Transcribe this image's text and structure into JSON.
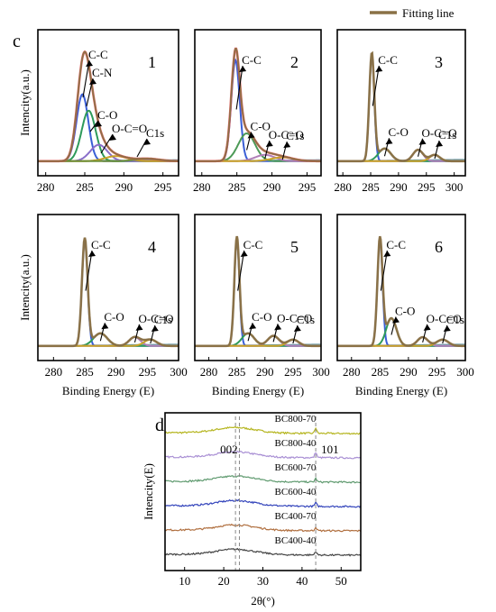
{
  "legend": {
    "label": "Fitting line",
    "color": "#8a7146"
  },
  "panel_c_letter": "c",
  "panel_d_letter": "d",
  "chart_data": [
    {
      "type": "line",
      "id": "xps-1",
      "panel_label": "1",
      "xlim": [
        279,
        297
      ],
      "xticks": [
        280,
        285,
        290,
        295
      ],
      "ylim": [
        0,
        1
      ],
      "ylabel": "Intencity(a.u.)",
      "xlabel": "",
      "peaks": [
        {
          "name": "C-C",
          "center": 284.7,
          "height": 0.53,
          "width": 0.75,
          "color": "#3a5fd6"
        },
        {
          "name": "C-N",
          "center": 285.5,
          "height": 0.4,
          "width": 0.9,
          "color": "#2e9a5a"
        },
        {
          "name": "C-O",
          "center": 286.8,
          "height": 0.13,
          "width": 1.1,
          "color": "#8a6fc9"
        },
        {
          "name": "O-C=O",
          "center": 289.0,
          "height": 0.04,
          "width": 1.4,
          "color": "#c9a227"
        },
        {
          "name": "",
          "center": 293.0,
          "height": 0.02,
          "width": 1.5,
          "color": "#6f8f3a"
        }
      ],
      "envelope_color": "#d9544f",
      "background": 0.03,
      "annotations": [
        "C-C",
        "C-N",
        "C-O",
        "O-C=O",
        "C1s"
      ]
    },
    {
      "type": "line",
      "id": "xps-2",
      "panel_label": "2",
      "xlim": [
        279,
        297
      ],
      "xticks": [
        280,
        285,
        290,
        295
      ],
      "ylim": [
        0,
        1
      ],
      "peaks": [
        {
          "name": "C-C",
          "center": 284.8,
          "height": 0.8,
          "width": 0.6,
          "color": "#3a5fd6"
        },
        {
          "name": "C-O",
          "center": 286.4,
          "height": 0.22,
          "width": 1.2,
          "color": "#4c9a57"
        },
        {
          "name": "O-C=O",
          "center": 289.0,
          "height": 0.05,
          "width": 1.4,
          "color": "#b07fb8"
        },
        {
          "name": "",
          "center": 291.5,
          "height": 0.03,
          "width": 1.6,
          "color": "#c9a227"
        }
      ],
      "envelope_color": "#d9544f",
      "background": 0.03,
      "annotations": [
        "C-C",
        "C-O",
        "O-C=O",
        "C1s"
      ]
    },
    {
      "type": "line",
      "id": "xps-3",
      "panel_label": "3",
      "xlim": [
        279,
        302
      ],
      "xticks": [
        280,
        285,
        290,
        295,
        300
      ],
      "ylim": [
        0,
        1
      ],
      "peaks": [
        {
          "name": "C-C",
          "center": 285.2,
          "height": 0.85,
          "width": 0.45,
          "color": "#3a5fd6"
        },
        {
          "name": "C-O",
          "center": 287.5,
          "height": 0.1,
          "width": 1.1,
          "color": "#2e9a5a"
        },
        {
          "name": "O-C=O",
          "center": 293.5,
          "height": 0.09,
          "width": 0.9,
          "color": "#b07fb8"
        },
        {
          "name": "",
          "center": 296.5,
          "height": 0.05,
          "width": 0.9,
          "color": "#c9a227"
        }
      ],
      "envelope_color": "#8a7146",
      "background": 0.03,
      "annotations": [
        "C-C",
        "C-O",
        "O-C=O",
        "C1s"
      ]
    },
    {
      "type": "line",
      "id": "xps-4",
      "panel_label": "4",
      "xlim": [
        277.5,
        300
      ],
      "xticks": [
        280,
        285,
        290,
        295,
        300
      ],
      "ylim": [
        0,
        1
      ],
      "xlabel": "Binding Energy (E)",
      "ylabel": "Intencity(a.u.)",
      "peaks": [
        {
          "name": "C-C",
          "center": 285.0,
          "height": 0.85,
          "width": 0.45,
          "color": "#3a5fd6"
        },
        {
          "name": "C-O",
          "center": 287.5,
          "height": 0.1,
          "width": 1.1,
          "color": "#2e9a5a"
        },
        {
          "name": "O-C=O",
          "center": 293.0,
          "height": 0.07,
          "width": 0.9,
          "color": "#b07fb8"
        },
        {
          "name": "",
          "center": 295.5,
          "height": 0.05,
          "width": 1.0,
          "color": "#c9a227"
        }
      ],
      "envelope_color": "#8a7146",
      "background": 0.03,
      "annotations": [
        "C-C",
        "C-O",
        "O-C=O",
        "C1s"
      ]
    },
    {
      "type": "line",
      "id": "xps-5",
      "panel_label": "5",
      "xlim": [
        277.5,
        300
      ],
      "xticks": [
        280,
        285,
        290,
        295,
        300
      ],
      "ylim": [
        0,
        1
      ],
      "xlabel": "Binding Energy (E)",
      "peaks": [
        {
          "name": "C-C",
          "center": 285.0,
          "height": 0.85,
          "width": 0.45,
          "color": "#3a5fd6"
        },
        {
          "name": "C-O",
          "center": 287.0,
          "height": 0.1,
          "width": 1.1,
          "color": "#2e9a5a"
        },
        {
          "name": "O-C=O",
          "center": 291.5,
          "height": 0.08,
          "width": 1.0,
          "color": "#b07fb8"
        },
        {
          "name": "",
          "center": 295.0,
          "height": 0.05,
          "width": 1.0,
          "color": "#c9a227"
        }
      ],
      "envelope_color": "#8a7146",
      "background": 0.03,
      "annotations": [
        "C-C",
        "C-O",
        "O-C=O",
        "C1s"
      ]
    },
    {
      "type": "line",
      "id": "xps-6",
      "panel_label": "6",
      "xlim": [
        277.5,
        300
      ],
      "xticks": [
        280,
        285,
        290,
        295,
        300
      ],
      "ylim": [
        0,
        1
      ],
      "xlabel": "Binding Energy (E)",
      "peaks": [
        {
          "name": "C-C",
          "center": 285.0,
          "height": 0.85,
          "width": 0.45,
          "color": "#3a5fd6"
        },
        {
          "name": "C-O",
          "center": 287.0,
          "height": 0.22,
          "width": 0.9,
          "color": "#2e9a5a"
        },
        {
          "name": "O-C=O",
          "center": 292.5,
          "height": 0.07,
          "width": 0.9,
          "color": "#b07fb8"
        },
        {
          "name": "",
          "center": 296.0,
          "height": 0.05,
          "width": 1.0,
          "color": "#c9a227"
        }
      ],
      "envelope_color": "#8a7146",
      "background": 0.03,
      "annotations": [
        "C-C",
        "C-O",
        "O-C=O",
        "C1s"
      ]
    },
    {
      "type": "line",
      "id": "xrd",
      "xlabel": "2θ(°)",
      "ylabel": "Intencity(E)",
      "xlim": [
        5,
        55
      ],
      "xticks": [
        10,
        20,
        30,
        40,
        50
      ],
      "reference_lines": [
        23,
        24,
        43.5
      ],
      "peak_labels": [
        {
          "text": "002",
          "x": 23
        },
        {
          "text": "101",
          "x": 43.5
        }
      ],
      "series": [
        {
          "name": "BC800-70",
          "color": "#b5b51f",
          "offset": 5
        },
        {
          "name": "BC800-40",
          "color": "#a98fd4",
          "offset": 4
        },
        {
          "name": "BC600-70",
          "color": "#5f9a6f",
          "offset": 3
        },
        {
          "name": "BC600-40",
          "color": "#3344bb",
          "offset": 2
        },
        {
          "name": "BC400-70",
          "color": "#b06f3f",
          "offset": 1
        },
        {
          "name": "BC400-40",
          "color": "#444444",
          "offset": 0
        }
      ]
    }
  ]
}
